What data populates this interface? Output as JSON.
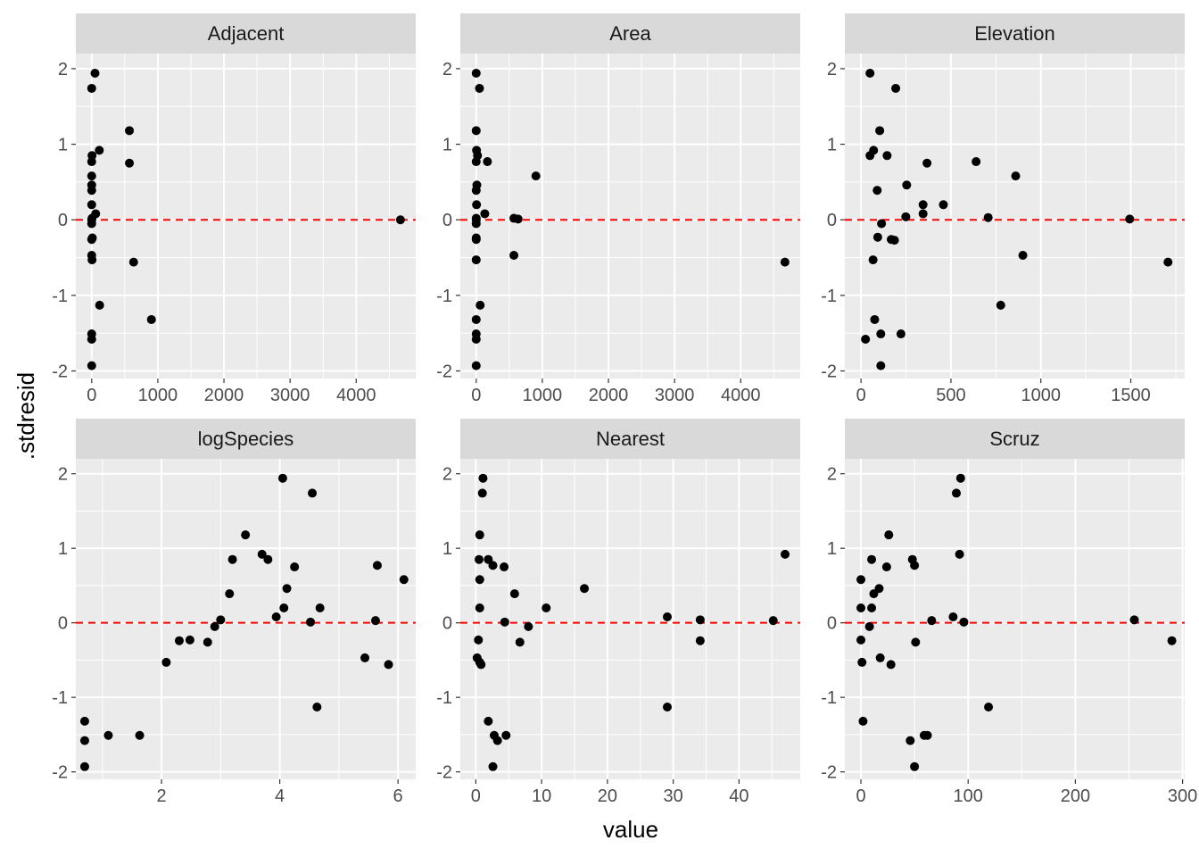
{
  "chart_data": {
    "type": "scatter",
    "layout": "facet-grid 2x3, free x scales, shared y scale",
    "xlabel": "value",
    "ylabel": ".stdresid",
    "ylim": [
      -2.1,
      2.2
    ],
    "yticks": [
      -2,
      -1,
      0,
      1,
      2
    ],
    "ytick_labels": [
      "-2",
      "-1",
      "0",
      "1",
      "2"
    ],
    "reference_line": {
      "y": 0,
      "color": "#ff0000",
      "style": "dashed"
    },
    "panel_background": "#ebebeb",
    "strip_background": "#d9d9d9",
    "point_color": "#000000",
    "grid": true,
    "facets": [
      {
        "name": "Adjacent",
        "xlim": [
          -240,
          4900
        ],
        "xticks": [
          0,
          1000,
          2000,
          3000,
          4000
        ],
        "xtick_labels": [
          "0",
          "1000",
          "2000",
          "3000",
          "4000"
        ],
        "points": [
          [
            50,
            1.94
          ],
          [
            0,
            1.74
          ],
          [
            570,
            1.18
          ],
          [
            115,
            0.92
          ],
          [
            5,
            0.85
          ],
          [
            0,
            0.77
          ],
          [
            570,
            0.75
          ],
          [
            0,
            0.58
          ],
          [
            0,
            0.46
          ],
          [
            0,
            0.39
          ],
          [
            0,
            0.2
          ],
          [
            60,
            0.08
          ],
          [
            5,
            0.02
          ],
          [
            0,
            0.0
          ],
          [
            0,
            -0.05
          ],
          [
            10,
            -0.24
          ],
          [
            0,
            -0.26
          ],
          [
            0,
            -0.47
          ],
          [
            5,
            -0.53
          ],
          [
            634,
            -0.56
          ],
          [
            120,
            -1.13
          ],
          [
            903,
            -1.32
          ],
          [
            0,
            -1.51
          ],
          [
            0,
            -1.58
          ],
          [
            0,
            -1.93
          ],
          [
            4669,
            0.0
          ]
        ]
      },
      {
        "name": "Area",
        "xlim": [
          -240,
          4900
        ],
        "xticks": [
          0,
          1000,
          2000,
          3000,
          4000
        ],
        "xtick_labels": [
          "0",
          "1000",
          "2000",
          "3000",
          "4000"
        ],
        "points": [
          [
            0,
            1.94
          ],
          [
            50,
            1.74
          ],
          [
            0,
            1.18
          ],
          [
            5,
            0.92
          ],
          [
            20,
            0.85
          ],
          [
            0,
            0.77
          ],
          [
            170,
            0.77
          ],
          [
            903,
            0.58
          ],
          [
            10,
            0.46
          ],
          [
            0,
            0.39
          ],
          [
            5,
            0.2
          ],
          [
            130,
            0.08
          ],
          [
            0,
            0.02
          ],
          [
            0,
            0.0
          ],
          [
            0,
            -0.05
          ],
          [
            0,
            -0.24
          ],
          [
            0,
            -0.26
          ],
          [
            570,
            -0.47
          ],
          [
            0,
            -0.53
          ],
          [
            4669,
            -0.56
          ],
          [
            60,
            -1.13
          ],
          [
            0,
            -1.32
          ],
          [
            0,
            -1.51
          ],
          [
            0,
            -1.58
          ],
          [
            0,
            -1.93
          ],
          [
            570,
            0.02
          ],
          [
            634,
            0.01
          ]
        ]
      },
      {
        "name": "Elevation",
        "xlim": [
          -90,
          1800
        ],
        "xticks": [
          0,
          500,
          1000,
          1500
        ],
        "xtick_labels": [
          "0",
          "500",
          "1000",
          "1500"
        ],
        "points": [
          [
            50,
            1.94
          ],
          [
            193,
            1.74
          ],
          [
            104,
            1.18
          ],
          [
            70,
            0.92
          ],
          [
            50,
            0.85
          ],
          [
            145,
            0.85
          ],
          [
            367,
            0.75
          ],
          [
            640,
            0.77
          ],
          [
            860,
            0.58
          ],
          [
            254,
            0.46
          ],
          [
            90,
            0.39
          ],
          [
            345,
            0.2
          ],
          [
            458,
            0.2
          ],
          [
            345,
            0.08
          ],
          [
            249,
            0.04
          ],
          [
            707,
            0.03
          ],
          [
            1494,
            0.01
          ],
          [
            114,
            -0.05
          ],
          [
            93,
            -0.23
          ],
          [
            168,
            -0.26
          ],
          [
            186,
            -0.27
          ],
          [
            900,
            -0.47
          ],
          [
            67,
            -0.53
          ],
          [
            1707,
            -0.56
          ],
          [
            777,
            -1.13
          ],
          [
            76,
            -1.32
          ],
          [
            110,
            -1.51
          ],
          [
            222,
            -1.51
          ],
          [
            25,
            -1.58
          ],
          [
            110,
            -1.93
          ]
        ]
      },
      {
        "name": "logSpecies",
        "xlim": [
          0.55,
          6.3
        ],
        "xticks": [
          2,
          4,
          6
        ],
        "xtick_labels": [
          "2",
          "4",
          "6"
        ],
        "points": [
          [
            4.05,
            1.94
          ],
          [
            4.55,
            1.74
          ],
          [
            3.42,
            1.18
          ],
          [
            3.7,
            0.92
          ],
          [
            3.8,
            0.85
          ],
          [
            3.2,
            0.85
          ],
          [
            5.65,
            0.77
          ],
          [
            4.25,
            0.75
          ],
          [
            6.1,
            0.58
          ],
          [
            4.12,
            0.46
          ],
          [
            3.15,
            0.39
          ],
          [
            4.07,
            0.2
          ],
          [
            4.68,
            0.2
          ],
          [
            3.94,
            0.08
          ],
          [
            3.0,
            0.04
          ],
          [
            5.62,
            0.03
          ],
          [
            4.52,
            0.01
          ],
          [
            2.9,
            -0.05
          ],
          [
            2.3,
            -0.24
          ],
          [
            2.48,
            -0.23
          ],
          [
            2.78,
            -0.26
          ],
          [
            5.44,
            -0.47
          ],
          [
            2.08,
            -0.53
          ],
          [
            5.84,
            -0.56
          ],
          [
            4.63,
            -1.13
          ],
          [
            0.7,
            -1.32
          ],
          [
            1.1,
            -1.51
          ],
          [
            1.63,
            -1.51
          ],
          [
            0.7,
            -1.58
          ],
          [
            0.7,
            -1.93
          ]
        ]
      },
      {
        "name": "Nearest",
        "xlim": [
          -2.35,
          49.3
        ],
        "xticks": [
          0,
          10,
          20,
          30,
          40
        ],
        "xtick_labels": [
          "0",
          "10",
          "20",
          "30",
          "40"
        ],
        "points": [
          [
            1.1,
            1.94
          ],
          [
            1.0,
            1.74
          ],
          [
            0.6,
            1.18
          ],
          [
            47.0,
            0.92
          ],
          [
            0.5,
            0.85
          ],
          [
            1.9,
            0.85
          ],
          [
            2.6,
            0.77
          ],
          [
            4.3,
            0.75
          ],
          [
            0.6,
            0.58
          ],
          [
            16.5,
            0.46
          ],
          [
            5.9,
            0.39
          ],
          [
            0.6,
            0.2
          ],
          [
            10.7,
            0.2
          ],
          [
            29.1,
            0.08
          ],
          [
            34.1,
            0.04
          ],
          [
            45.2,
            0.03
          ],
          [
            4.4,
            0.01
          ],
          [
            8.0,
            -0.05
          ],
          [
            0.4,
            -0.23
          ],
          [
            34.1,
            -0.24
          ],
          [
            6.7,
            -0.26
          ],
          [
            0.2,
            -0.47
          ],
          [
            0.6,
            -0.53
          ],
          [
            0.8,
            -0.56
          ],
          [
            29.1,
            -1.13
          ],
          [
            1.9,
            -1.32
          ],
          [
            2.8,
            -1.51
          ],
          [
            4.6,
            -1.51
          ],
          [
            3.3,
            -1.58
          ],
          [
            2.6,
            -1.93
          ]
        ]
      },
      {
        "name": "Scruz",
        "xlim": [
          -15,
          302
        ],
        "xticks": [
          0,
          100,
          200,
          300
        ],
        "xtick_labels": [
          "0",
          "100",
          "200",
          "300"
        ],
        "points": [
          [
            93,
            1.94
          ],
          [
            89,
            1.74
          ],
          [
            26,
            1.18
          ],
          [
            92,
            0.92
          ],
          [
            10,
            0.85
          ],
          [
            48,
            0.85
          ],
          [
            50,
            0.77
          ],
          [
            24,
            0.75
          ],
          [
            0,
            0.58
          ],
          [
            17,
            0.46
          ],
          [
            12,
            0.39
          ],
          [
            0,
            0.2
          ],
          [
            10,
            0.2
          ],
          [
            86,
            0.08
          ],
          [
            255,
            0.04
          ],
          [
            66,
            0.03
          ],
          [
            96,
            0.01
          ],
          [
            8,
            -0.05
          ],
          [
            0,
            -0.23
          ],
          [
            290,
            -0.24
          ],
          [
            51,
            -0.26
          ],
          [
            18,
            -0.47
          ],
          [
            1,
            -0.53
          ],
          [
            28,
            -0.56
          ],
          [
            119,
            -1.13
          ],
          [
            2,
            -1.32
          ],
          [
            59,
            -1.51
          ],
          [
            62,
            -1.51
          ],
          [
            46,
            -1.58
          ],
          [
            50,
            -1.93
          ]
        ]
      }
    ]
  }
}
